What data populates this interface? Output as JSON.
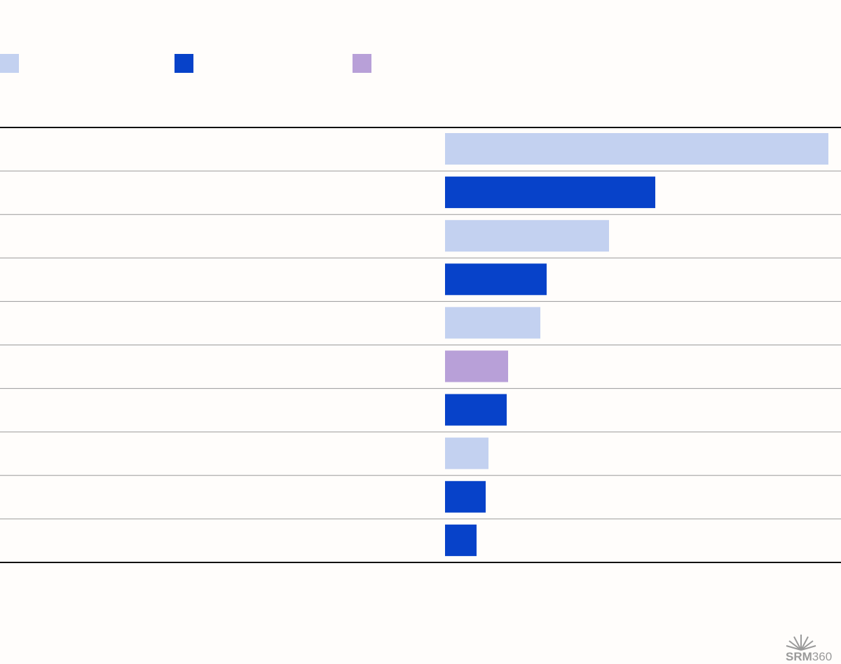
{
  "chart_data": {
    "type": "bar",
    "orientation": "horizontal",
    "categories": [
      null,
      null,
      null,
      null,
      null,
      null,
      null,
      null,
      null,
      null
    ],
    "values": [
      547,
      300,
      234,
      145,
      136,
      90,
      88,
      62,
      58,
      45
    ],
    "colors": [
      "#c3d1f0",
      "#0742c9",
      "#c3d1f0",
      "#0742c9",
      "#c3d1f0",
      "#b8a0d8",
      "#0742c9",
      "#c3d1f0",
      "#0742c9",
      "#0742c9"
    ],
    "xlim": [
      0,
      565
    ],
    "legend_colors": [
      "#c3d1f0",
      "#0742c9",
      "#b8a0d8"
    ]
  },
  "logo": {
    "brand": "SRM",
    "number": "360"
  }
}
